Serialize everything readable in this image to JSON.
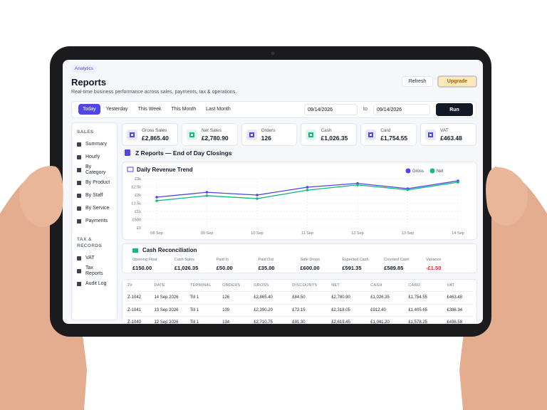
{
  "header": {
    "badge": "Analytics",
    "title": "Reports",
    "subtitle": "Real-time business performance across sales, payments, tax & operations.",
    "refresh": "Refresh",
    "upgrade": "Upgrade"
  },
  "filters": {
    "ranges": [
      "Today",
      "Yesterday",
      "This Week",
      "This Month",
      "Last Month"
    ],
    "active": 0,
    "from": "09/14/2026",
    "to_label": "to",
    "to": "09/14/2026",
    "run": "Run"
  },
  "sidebar": {
    "sections": [
      {
        "title": "SALES",
        "items": [
          "Summary",
          "Hourly",
          "By Category",
          "By Product",
          "By Staff",
          "By Service",
          "Payments"
        ]
      },
      {
        "title": "TAX & RECORDS",
        "items": [
          "VAT",
          "Tax Reports",
          "Audit Log"
        ]
      }
    ]
  },
  "kpis": [
    {
      "label": "Gross Sales",
      "value": "£2,865.40",
      "color": "#4f46e5"
    },
    {
      "label": "Net Sales",
      "value": "£2,780.90",
      "color": "#10b981"
    },
    {
      "label": "Orders",
      "value": "126",
      "color": "#4f46e5"
    },
    {
      "label": "Cash",
      "value": "£1,026.35",
      "color": "#10b981"
    },
    {
      "label": "Card",
      "value": "£1,754.55",
      "color": "#4f46e5"
    },
    {
      "label": "VAT",
      "value": "£463.48",
      "color": "#4f46e5"
    }
  ],
  "section_title": "Z Reports — End of Day Closings",
  "chart_data": {
    "type": "line",
    "title": "Daily Revenue Trend",
    "categories": [
      "08 Sep",
      "09 Sep",
      "10 Sep",
      "11 Sep",
      "12 Sep",
      "13 Sep",
      "14 Sep"
    ],
    "series": [
      {
        "name": "Gross",
        "color": "#4f46e5",
        "values": [
          1870,
          2170,
          2000,
          2480,
          2711,
          2390,
          2865
        ]
      },
      {
        "name": "Net",
        "color": "#10b981",
        "values": [
          1650,
          1960,
          1780,
          2300,
          2619,
          2318,
          2781
        ]
      }
    ],
    "ylim": [
      0,
      3000
    ],
    "yticks": [
      {
        "value": 0,
        "label": "£0"
      },
      {
        "value": 500,
        "label": "£500"
      },
      {
        "value": 1000,
        "label": "£1k"
      },
      {
        "value": 1500,
        "label": "£1.5k"
      },
      {
        "value": 2000,
        "label": "£2k"
      },
      {
        "value": 2500,
        "label": "£2.5k"
      },
      {
        "value": 3000,
        "label": "£3k"
      }
    ],
    "grid": true,
    "legend": "top-right"
  },
  "reconciliation": {
    "title": "Cash Reconciliation",
    "items": [
      {
        "label": "Opening Float",
        "value": "£150.00"
      },
      {
        "label": "Cash Sales",
        "value": "£1,026.35"
      },
      {
        "label": "Paid In",
        "value": "£50.00"
      },
      {
        "label": "Paid Out",
        "value": "£35.00"
      },
      {
        "label": "Safe Drops",
        "value": "£600.00"
      },
      {
        "label": "Expected Cash",
        "value": "£591.35"
      },
      {
        "label": "Counted Cash",
        "value": "£589.85"
      },
      {
        "label": "Variance",
        "value": "-£1.50",
        "color": "#dc2626"
      }
    ]
  },
  "table": {
    "columns": [
      "Z#",
      "DATE",
      "TERMINAL",
      "ORDERS",
      "GROSS",
      "DISCOUNTS",
      "NET",
      "CASH",
      "CARD",
      "VAT"
    ],
    "rows": [
      [
        "Z-1042",
        "14 Sep 2026",
        "Till 1",
        "126",
        "£2,865.40",
        "£84.50",
        "£2,780.90",
        "£1,026.35",
        "£1,754.55",
        "£463.48"
      ],
      [
        "Z-1041",
        "13 Sep 2026",
        "Till 1",
        "109",
        "£2,390.20",
        "£72.15",
        "£2,318.05",
        "£912.40",
        "£1,405.65",
        "£386.34"
      ],
      [
        "Z-1040",
        "12 Sep 2026",
        "Till 1",
        "134",
        "£2,710.75",
        "£91.30",
        "£2,619.45",
        "£1,041.20",
        "£1,578.25",
        "£436.58"
      ]
    ]
  }
}
